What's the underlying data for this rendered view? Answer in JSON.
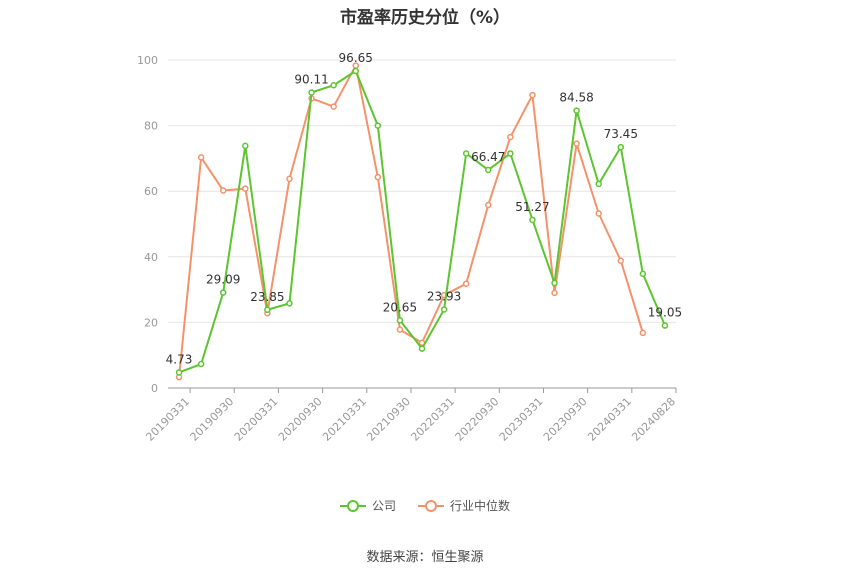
{
  "chart_data": {
    "type": "line",
    "title": "市盈率历史分位（%）",
    "source": "数据来源：恒生聚源",
    "x_tick_labels": [
      "20190331",
      "20190930",
      "20200331",
      "20200930",
      "20210331",
      "20210930",
      "20220331",
      "20220930",
      "20230331",
      "20230930",
      "20240331",
      "20240828"
    ],
    "ylim": [
      0,
      100
    ],
    "y_ticks": [
      0,
      20,
      40,
      60,
      80,
      100
    ],
    "grid": true,
    "legend_position": "bottom",
    "series": [
      {
        "name": "公司",
        "color": "#5cc530",
        "values": [
          4.73,
          7.3,
          29.09,
          73.8,
          23.85,
          25.8,
          90.11,
          92.3,
          96.65,
          80.0,
          20.65,
          12.0,
          23.93,
          71.5,
          66.47,
          71.5,
          51.27,
          32.0,
          84.58,
          62.2,
          73.45,
          34.8,
          19.05
        ],
        "labels": {
          "0": "4.73",
          "2": "29.09",
          "4": "23.85",
          "6": "90.11",
          "8": "96.65",
          "10": "20.65",
          "12": "23.93",
          "14": "66.47",
          "16": "51.27",
          "18": "84.58",
          "20": "73.45",
          "22": "19.05"
        }
      },
      {
        "name": "行业中位数",
        "color": "#f5926a",
        "values": [
          3.3,
          70.3,
          60.2,
          60.8,
          22.8,
          63.8,
          88.3,
          85.8,
          98.3,
          64.3,
          17.8,
          13.8,
          28.3,
          31.8,
          55.8,
          76.5,
          89.3,
          29.0,
          74.5,
          53.2,
          38.8,
          16.8,
          null
        ]
      }
    ]
  }
}
